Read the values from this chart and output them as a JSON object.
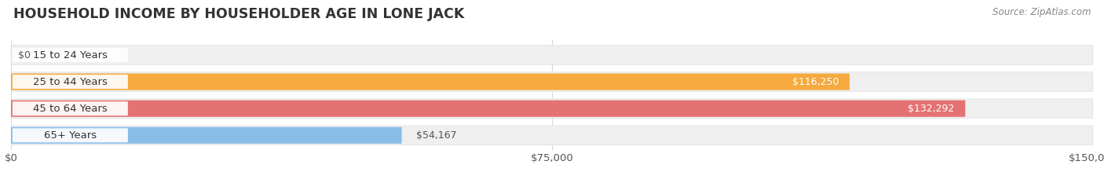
{
  "title": "HOUSEHOLD INCOME BY HOUSEHOLDER AGE IN LONE JACK",
  "source": "Source: ZipAtlas.com",
  "categories": [
    "15 to 24 Years",
    "25 to 44 Years",
    "45 to 64 Years",
    "65+ Years"
  ],
  "values": [
    0,
    116250,
    132292,
    54167
  ],
  "bar_colors": [
    "#f2a0b8",
    "#f5a93e",
    "#e57272",
    "#88bde8"
  ],
  "bar_track_color": "#efefef",
  "bar_track_border": "#e0e0e0",
  "label_bg_color": "#ffffff",
  "xlim": [
    0,
    150000
  ],
  "xticks": [
    0,
    75000,
    150000
  ],
  "xtick_labels": [
    "$0",
    "$75,000",
    "$150,000"
  ],
  "value_labels": [
    "$0",
    "$116,250",
    "$132,292",
    "$54,167"
  ],
  "value_label_inside": [
    false,
    true,
    true,
    false
  ],
  "background_color": "#ffffff",
  "title_fontsize": 12.5,
  "label_fontsize": 9.5,
  "value_fontsize": 9,
  "source_fontsize": 8.5,
  "grid_color": "#d8d8d8"
}
